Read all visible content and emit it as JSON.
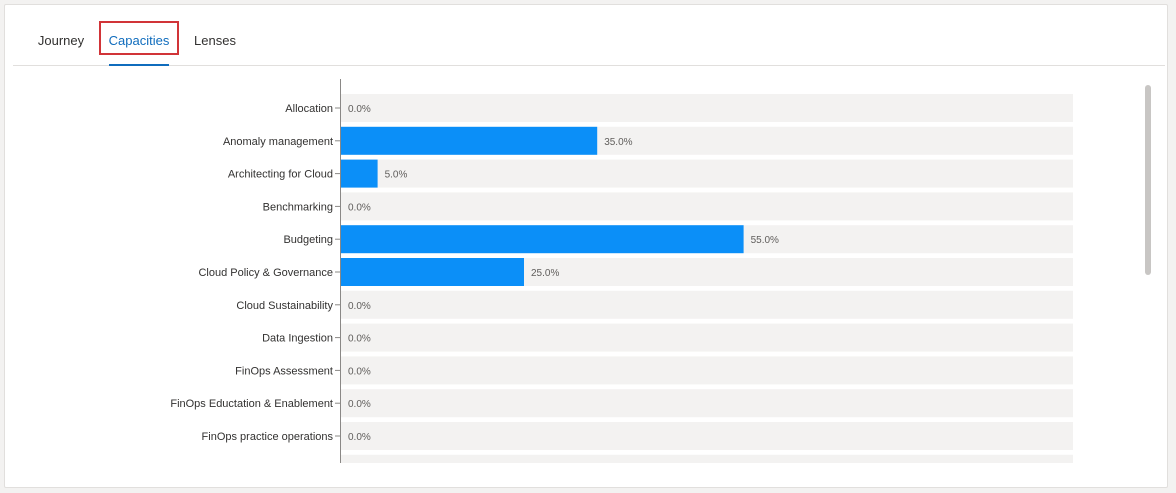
{
  "tabs": [
    {
      "label": "Journey",
      "active": false
    },
    {
      "label": "Capacities",
      "active": true
    },
    {
      "label": "Lenses",
      "active": false
    }
  ],
  "colors": {
    "bar": "#0b8ff8",
    "track": "#f3f2f1",
    "accent": "#0f6cbd",
    "highlight": "#d13438"
  },
  "chart_data": {
    "type": "bar",
    "orientation": "horizontal",
    "categories": [
      "Allocation",
      "Anomaly management",
      "Architecting for Cloud",
      "Benchmarking",
      "Budgeting",
      "Cloud Policy & Governance",
      "Cloud Sustainability",
      "Data Ingestion",
      "FinOps Assessment",
      "FinOps Eductation & Enablement",
      "FinOps practice operations"
    ],
    "values": [
      0,
      35,
      5,
      0,
      55,
      25,
      0,
      0,
      0,
      0,
      0
    ],
    "labels": [
      "0.0%",
      "35.0%",
      "5.0%",
      "0.0%",
      "55.0%",
      "25.0%",
      "0.0%",
      "0.0%",
      "0.0%",
      "0.0%",
      "0.0%"
    ],
    "xlim": [
      0,
      100
    ],
    "unit": "%",
    "grid": false,
    "legend": "none"
  }
}
